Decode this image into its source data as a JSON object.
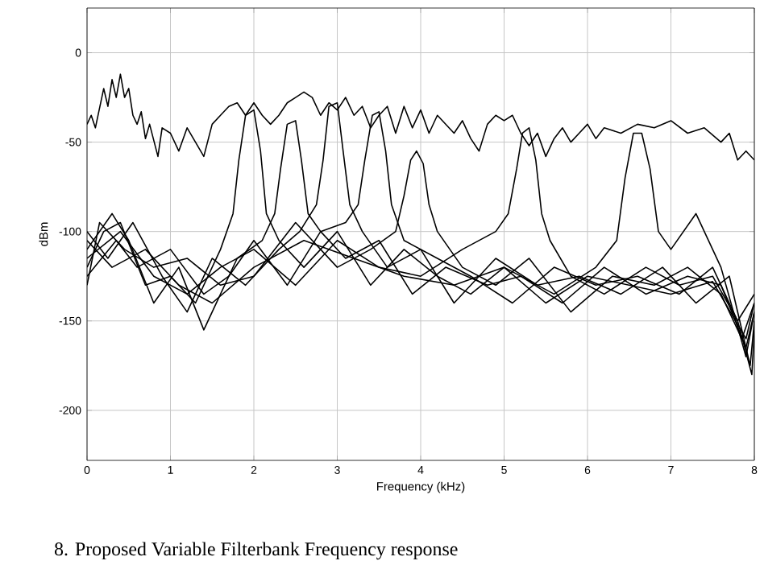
{
  "chart_data": {
    "type": "line",
    "xlabel": "Frequency (kHz)",
    "ylabel": "dBm",
    "annotations": [
      "8.   Proposed Variable Filterbank Frequency response"
    ],
    "xlim": [
      0,
      8
    ],
    "ylim": [
      -228,
      25
    ],
    "xticks": [
      0,
      1,
      2,
      3,
      4,
      5,
      6,
      7,
      8
    ],
    "yticks": [
      -200,
      -150,
      -100,
      -50,
      0
    ],
    "grid": true,
    "marker": "none",
    "line_style": "solid",
    "series": [
      {
        "color": "#000000",
        "x": [
          0,
          0.05,
          0.1,
          0.2,
          0.25,
          0.3,
          0.35,
          0.4,
          0.45,
          0.5,
          0.55,
          0.6,
          0.65,
          0.7,
          0.75,
          0.85,
          0.9,
          1.0,
          1.1,
          1.2,
          1.3,
          1.4,
          1.5,
          1.6,
          1.7,
          1.8,
          1.9,
          2.0,
          2.1,
          2.2,
          2.3,
          2.4,
          2.5,
          2.6,
          2.7,
          2.8,
          2.9,
          3.0,
          3.1,
          3.2,
          3.3,
          3.4,
          3.5,
          3.6,
          3.7,
          3.8,
          3.9,
          4.0,
          4.1,
          4.2,
          4.3,
          4.4,
          4.5,
          4.6,
          4.7,
          4.8,
          4.9,
          5.0,
          5.1,
          5.2,
          5.3,
          5.4,
          5.5,
          5.6,
          5.7,
          5.8,
          5.9,
          6.0,
          6.1,
          6.2,
          6.4,
          6.6,
          6.8,
          7.0,
          7.2,
          7.4,
          7.6,
          7.7,
          7.8,
          7.9,
          8.0
        ],
        "values": [
          -40,
          -35,
          -42,
          -20,
          -30,
          -15,
          -25,
          -12,
          -25,
          -20,
          -35,
          -40,
          -33,
          -48,
          -40,
          -58,
          -42,
          -45,
          -55,
          -42,
          -50,
          -58,
          -40,
          -35,
          -30,
          -28,
          -35,
          -28,
          -35,
          -40,
          -35,
          -28,
          -25,
          -22,
          -25,
          -35,
          -28,
          -32,
          -25,
          -35,
          -30,
          -42,
          -35,
          -30,
          -45,
          -30,
          -42,
          -32,
          -45,
          -35,
          -40,
          -45,
          -38,
          -48,
          -55,
          -40,
          -35,
          -38,
          -35,
          -45,
          -52,
          -45,
          -58,
          -48,
          -42,
          -50,
          -45,
          -40,
          -48,
          -42,
          -45,
          -40,
          -42,
          -38,
          -45,
          -42,
          -50,
          -45,
          -60,
          -55,
          -60
        ]
      },
      {
        "color": "#000000",
        "x": [
          0,
          0.2,
          0.4,
          0.7,
          1.0,
          1.3,
          1.6,
          1.75,
          1.82,
          1.9,
          2.0,
          2.08,
          2.15,
          2.3,
          2.6,
          3.0,
          3.4,
          3.8,
          4.2,
          4.6,
          5.0,
          5.5,
          6.0,
          6.5,
          7.0,
          7.5,
          7.9,
          8.0
        ],
        "values": [
          -120,
          -100,
          -95,
          -130,
          -125,
          -140,
          -110,
          -90,
          -60,
          -35,
          -32,
          -55,
          -90,
          -105,
          -120,
          -100,
          -130,
          -110,
          -125,
          -135,
          -120,
          -140,
          -125,
          -130,
          -135,
          -128,
          -160,
          -140
        ]
      },
      {
        "color": "#000000",
        "x": [
          0,
          0.3,
          0.5,
          0.8,
          1.1,
          1.4,
          1.8,
          2.1,
          2.25,
          2.32,
          2.4,
          2.5,
          2.57,
          2.65,
          2.8,
          3.1,
          3.5,
          3.9,
          4.3,
          4.8,
          5.2,
          5.7,
          6.2,
          6.7,
          7.2,
          7.6,
          7.9,
          8.0
        ],
        "values": [
          -110,
          -90,
          -105,
          -140,
          -120,
          -155,
          -115,
          -105,
          -90,
          -65,
          -40,
          -38,
          -60,
          -90,
          -100,
          -115,
          -105,
          -135,
          -120,
          -130,
          -125,
          -140,
          -120,
          -135,
          -125,
          -130,
          -165,
          -145
        ]
      },
      {
        "color": "#000000",
        "x": [
          0,
          0.25,
          0.55,
          0.9,
          1.2,
          1.5,
          1.9,
          2.3,
          2.55,
          2.75,
          2.83,
          2.9,
          3.0,
          3.07,
          3.15,
          3.3,
          3.6,
          4.0,
          4.4,
          4.9,
          5.4,
          5.9,
          6.4,
          6.9,
          7.3,
          7.7,
          7.95,
          8.0
        ],
        "values": [
          -100,
          -115,
          -95,
          -125,
          -145,
          -115,
          -130,
          -110,
          -100,
          -85,
          -60,
          -30,
          -28,
          -55,
          -85,
          -100,
          -120,
          -110,
          -140,
          -115,
          -130,
          -125,
          -135,
          -120,
          -140,
          -125,
          -175,
          -150
        ]
      },
      {
        "color": "#000000",
        "x": [
          0,
          0.35,
          0.6,
          1.0,
          1.4,
          1.7,
          2.0,
          2.4,
          2.8,
          3.1,
          3.25,
          3.33,
          3.42,
          3.5,
          3.58,
          3.65,
          3.8,
          4.2,
          4.6,
          5.1,
          5.6,
          6.1,
          6.6,
          7.1,
          7.5,
          7.8,
          7.97,
          8.0
        ],
        "values": [
          -125,
          -105,
          -120,
          -110,
          -135,
          -125,
          -105,
          -130,
          -100,
          -95,
          -85,
          -60,
          -35,
          -33,
          -55,
          -85,
          -105,
          -115,
          -125,
          -140,
          -120,
          -130,
          -125,
          -135,
          -120,
          -150,
          -180,
          -155
        ]
      },
      {
        "color": "#000000",
        "x": [
          0,
          0.15,
          0.45,
          0.8,
          1.2,
          1.6,
          2.0,
          2.5,
          3.0,
          3.4,
          3.7,
          3.8,
          3.88,
          3.95,
          4.03,
          4.1,
          4.2,
          4.5,
          4.9,
          5.3,
          5.8,
          6.3,
          6.8,
          7.2,
          7.6,
          7.85,
          8.0
        ],
        "values": [
          -130,
          -95,
          -110,
          -120,
          -115,
          -130,
          -125,
          -95,
          -120,
          -110,
          -100,
          -80,
          -60,
          -55,
          -62,
          -85,
          -100,
          -120,
          -130,
          -115,
          -145,
          -125,
          -130,
          -120,
          -135,
          -160,
          -140
        ]
      },
      {
        "color": "#000000",
        "x": [
          0,
          0.4,
          0.8,
          1.2,
          1.6,
          2.0,
          2.5,
          3.0,
          3.5,
          4.0,
          4.5,
          4.9,
          5.05,
          5.15,
          5.22,
          5.3,
          5.38,
          5.45,
          5.55,
          5.8,
          6.2,
          6.7,
          7.1,
          7.5,
          7.8,
          8.0
        ],
        "values": [
          -115,
          -100,
          -125,
          -135,
          -120,
          -110,
          -130,
          -105,
          -120,
          -125,
          -110,
          -100,
          -90,
          -65,
          -45,
          -42,
          -60,
          -90,
          -105,
          -125,
          -135,
          -120,
          -130,
          -125,
          -150,
          -135
        ]
      },
      {
        "color": "#000000",
        "x": [
          0,
          0.3,
          0.7,
          1.1,
          1.5,
          2.0,
          2.6,
          3.2,
          3.8,
          4.4,
          5.0,
          5.6,
          6.1,
          6.35,
          6.45,
          6.55,
          6.65,
          6.75,
          6.85,
          7.0,
          7.3,
          7.6,
          7.9,
          8.0
        ],
        "values": [
          -105,
          -120,
          -110,
          -130,
          -140,
          -120,
          -105,
          -115,
          -125,
          -130,
          -120,
          -135,
          -120,
          -105,
          -70,
          -45,
          -45,
          -65,
          -100,
          -110,
          -90,
          -120,
          -170,
          -145
        ]
      }
    ]
  }
}
